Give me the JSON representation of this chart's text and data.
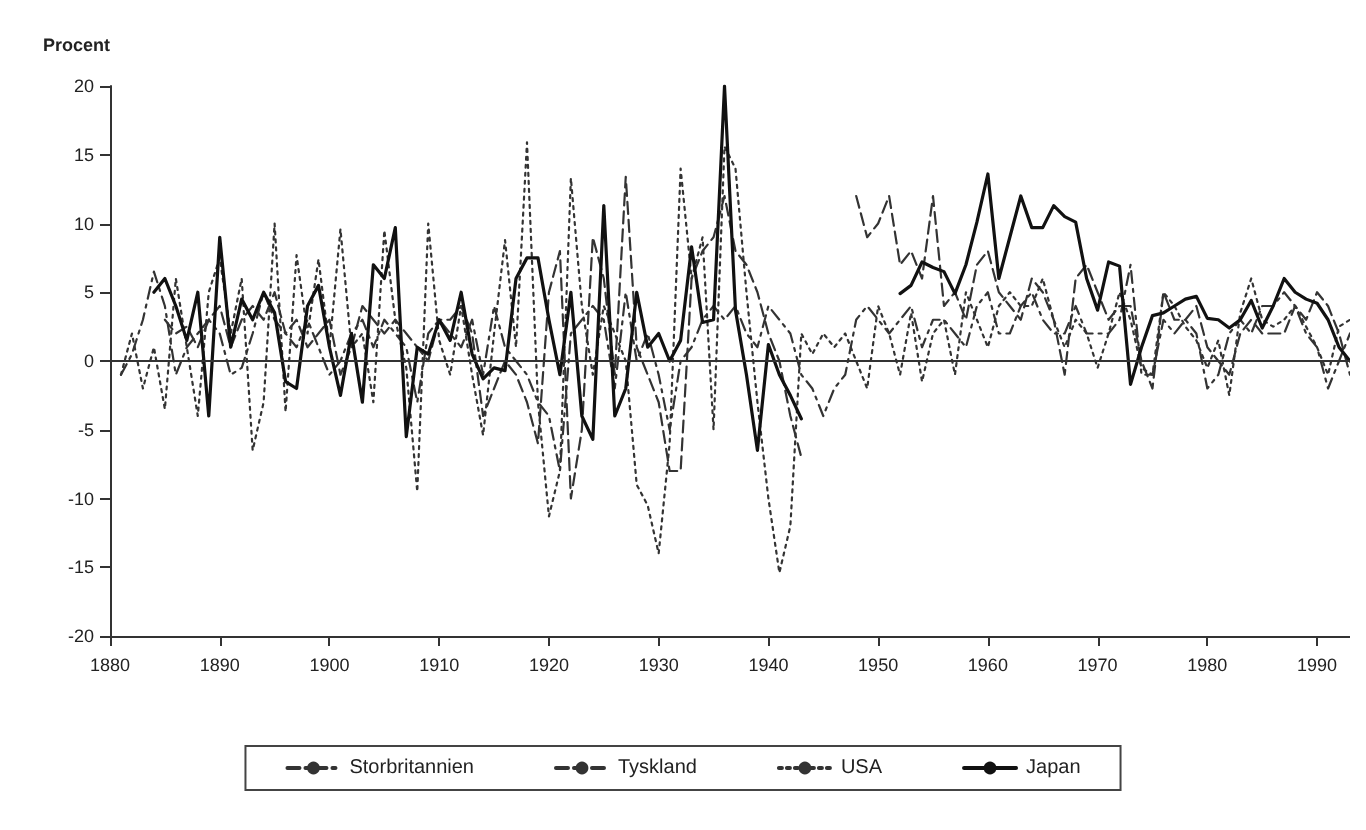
{
  "chart_data": {
    "type": "line",
    "ylabel": "Procent",
    "x": [
      1881,
      1882,
      1883,
      1884,
      1885,
      1886,
      1887,
      1888,
      1889,
      1890,
      1891,
      1892,
      1893,
      1894,
      1895,
      1896,
      1897,
      1898,
      1899,
      1900,
      1901,
      1902,
      1903,
      1904,
      1905,
      1906,
      1907,
      1908,
      1909,
      1910,
      1911,
      1912,
      1913,
      1914,
      1915,
      1916,
      1917,
      1918,
      1919,
      1920,
      1921,
      1922,
      1923,
      1924,
      1925,
      1926,
      1927,
      1928,
      1929,
      1930,
      1931,
      1932,
      1933,
      1934,
      1935,
      1936,
      1937,
      1938,
      1939,
      1940,
      1941,
      1942,
      1943,
      1944,
      1945,
      1946,
      1947,
      1948,
      1949,
      1950,
      1951,
      1952,
      1953,
      1954,
      1955,
      1956,
      1957,
      1958,
      1959,
      1960,
      1961,
      1962,
      1963,
      1964,
      1965,
      1966,
      1967,
      1968,
      1969,
      1970,
      1971,
      1972,
      1973,
      1974,
      1975,
      1976,
      1977,
      1978,
      1979,
      1980,
      1981,
      1982,
      1983,
      1984,
      1985,
      1986,
      1987,
      1988,
      1989,
      1990,
      1991,
      1992,
      1993
    ],
    "series": [
      {
        "name": "Storbritannien",
        "color": "#333333",
        "line_style": "dashdot",
        "values": [
          -1,
          0.5,
          3,
          6.5,
          4,
          -1,
          1,
          2,
          3,
          2,
          -1,
          -0.5,
          2,
          5,
          3,
          2,
          1,
          3,
          1,
          -1,
          0,
          2,
          3,
          1,
          3,
          2,
          1,
          -3,
          2,
          3,
          2,
          1,
          3,
          -1,
          4,
          1,
          0,
          -1,
          -3,
          -4,
          -8,
          2,
          3,
          4,
          3,
          -2,
          5,
          0,
          2,
          -1,
          -5,
          0,
          1,
          3,
          4,
          3,
          4,
          2,
          1,
          4,
          3,
          2,
          -1,
          -2,
          -4,
          -2,
          -1,
          3,
          4,
          3,
          2,
          3,
          4,
          1,
          3,
          3,
          2,
          1,
          4,
          5,
          2,
          2,
          4,
          5,
          3,
          2,
          2,
          4,
          2,
          2,
          2,
          3,
          7,
          -1,
          -1,
          3,
          2,
          3,
          2,
          -2,
          -1,
          2,
          3,
          2,
          4,
          4,
          5,
          4,
          2,
          1,
          -2,
          0,
          2
        ]
      },
      {
        "name": "Tyskland",
        "color": "#333333",
        "line_style": "dashed",
        "values": [
          null,
          null,
          null,
          null,
          3,
          2,
          2.5,
          1,
          3,
          4,
          1,
          3,
          4,
          3,
          5,
          2,
          3,
          1,
          2,
          3,
          -1,
          1,
          4,
          3,
          2,
          3,
          2,
          1,
          0,
          3,
          3,
          4,
          2,
          -4,
          -2,
          0,
          -1,
          -3,
          -6,
          5,
          8,
          -10,
          -5,
          9,
          6,
          -1,
          13.4,
          1,
          -1,
          -3,
          -8,
          -8,
          6,
          8,
          9,
          12,
          8,
          7,
          5,
          2,
          0,
          -4,
          -7,
          null,
          null,
          null,
          null,
          12,
          9,
          10,
          12,
          7,
          8,
          6,
          12,
          4,
          5,
          3,
          7,
          8,
          5,
          4,
          3,
          6,
          5,
          3,
          -1,
          6,
          7,
          5,
          3,
          4,
          4,
          0,
          -2,
          5,
          3,
          3,
          4,
          1,
          0,
          -1,
          2,
          3,
          2,
          2,
          2,
          4,
          3,
          5,
          4,
          2,
          -1
        ]
      },
      {
        "name": "USA",
        "color": "#333333",
        "line_style": "dotted",
        "values": [
          -1,
          2,
          -2,
          1,
          -3.5,
          6,
          1,
          -4,
          5,
          7.5,
          2,
          6,
          -6.5,
          -3,
          10,
          -3.7,
          7.7,
          2,
          7.4,
          1,
          9.6,
          1,
          2,
          -3,
          9.5,
          3,
          -0.5,
          -9.5,
          10,
          1.5,
          -1,
          4,
          -1,
          -5.4,
          2,
          8.8,
          1,
          15.9,
          -3,
          -11.3,
          -8,
          13.3,
          4,
          -1,
          4,
          2,
          0,
          -9,
          -10.5,
          -14,
          -6,
          14,
          6,
          9,
          -5,
          15.6,
          14,
          5,
          -3,
          -10,
          -15.4,
          -12,
          2,
          0.5,
          2,
          1,
          2,
          0,
          -2,
          4,
          2,
          -1,
          3.5,
          -1.5,
          2,
          3,
          -1,
          5,
          3,
          1,
          4,
          5,
          4,
          4,
          6,
          3,
          1,
          3,
          2,
          -0.5,
          2,
          5,
          3,
          -0.5,
          -1,
          5,
          4,
          2.5,
          1.5,
          -0.5,
          1.5,
          -2.5,
          3.5,
          6,
          3,
          2.5,
          3,
          4,
          2.5,
          1,
          -1,
          2.5,
          3
        ]
      },
      {
        "name": "Japan",
        "color": "#111111",
        "line_style": "solid",
        "values": [
          null,
          null,
          null,
          5,
          6,
          4,
          1.5,
          5,
          -4,
          9,
          1,
          4.5,
          3,
          5,
          3.5,
          -1.5,
          -2,
          4,
          5.5,
          1,
          -2.5,
          2,
          -3,
          7,
          6,
          9.7,
          -5.5,
          1,
          0.5,
          3,
          1.5,
          5,
          0.5,
          -1.3,
          -0.5,
          -0.7,
          6,
          7.5,
          7.5,
          3,
          -1,
          5,
          -4,
          -5.7,
          11.3,
          -4,
          -2,
          5,
          1,
          2,
          0,
          1.5,
          8.3,
          2.8,
          3,
          20,
          3.7,
          -1,
          -6.5,
          1.2,
          -1,
          -2.5,
          -4.2,
          null,
          null,
          null,
          null,
          null,
          null,
          null,
          null,
          4.9,
          5.5,
          7.2,
          6.8,
          6.5,
          4.9,
          7,
          10.1,
          13.6,
          6,
          9,
          12,
          9.7,
          9.7,
          11.3,
          10.5,
          10.1,
          6,
          3.7,
          7.2,
          6.9,
          -1.7,
          1,
          3.3,
          3.5,
          4,
          4.5,
          4.7,
          3.1,
          3,
          2.4,
          3,
          4.4,
          2.4,
          4,
          6,
          5,
          4.5,
          4.2,
          3,
          1,
          0
        ]
      }
    ],
    "xlim": [
      1880,
      1993
    ],
    "xticks": [
      1880,
      1890,
      1900,
      1910,
      1920,
      1930,
      1940,
      1950,
      1960,
      1970,
      1980,
      1990
    ],
    "ylim": [
      -20,
      20
    ],
    "yticks": [
      -20,
      -15,
      -10,
      -5,
      0,
      5,
      10,
      15,
      20
    ],
    "ref_lines": [
      {
        "axis": "y",
        "value": 0
      }
    ],
    "grid": false,
    "legend": "bottom",
    "marker": "none"
  }
}
